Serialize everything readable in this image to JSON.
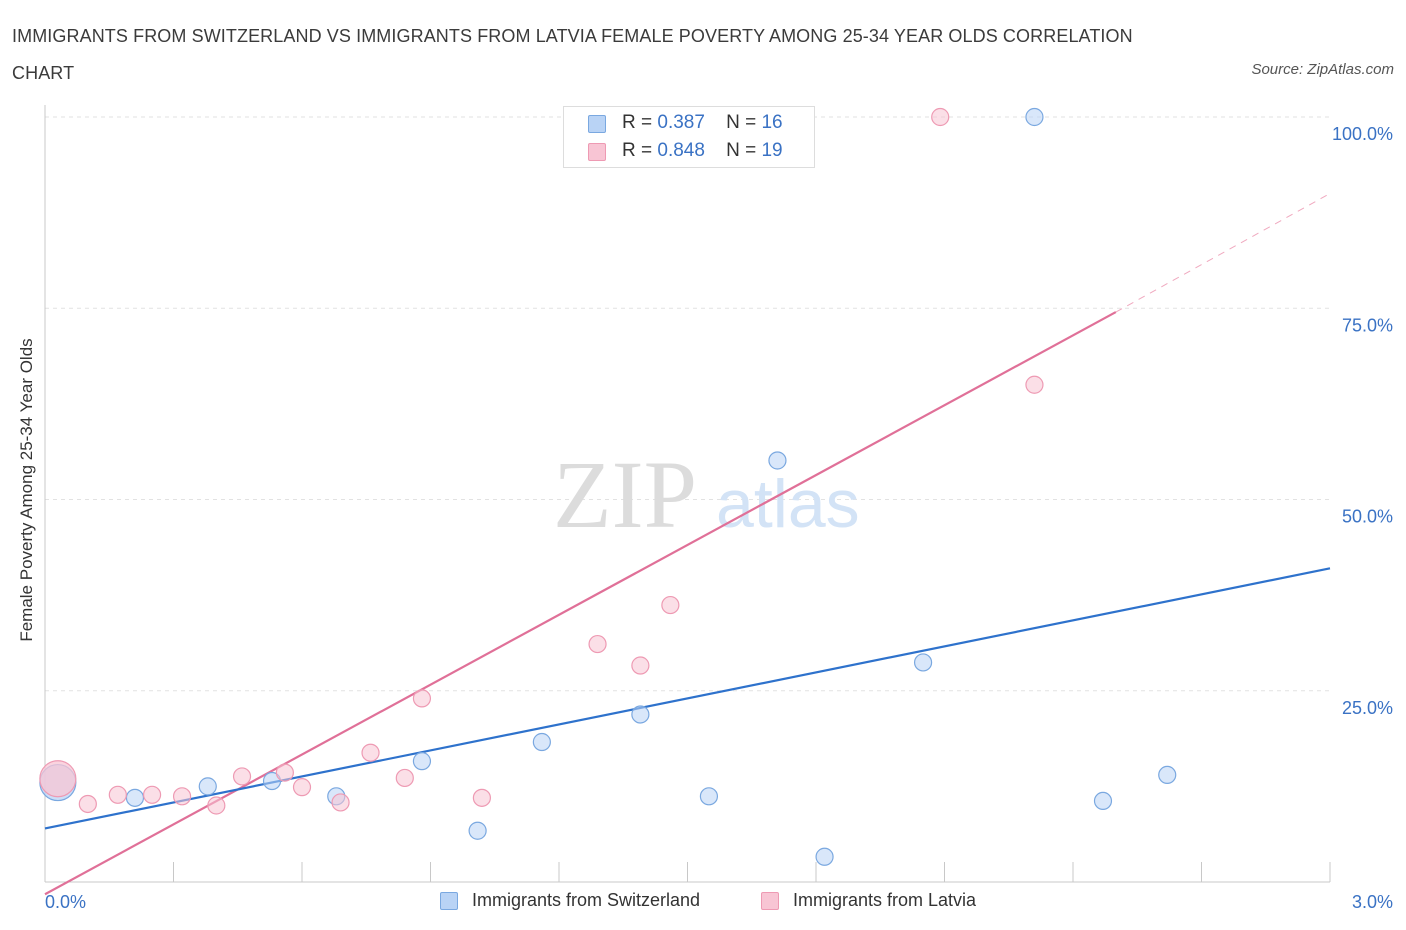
{
  "header": {
    "title": "IMMIGRANTS FROM SWITZERLAND VS IMMIGRANTS FROM LATVIA FEMALE POVERTY AMONG 25-34 YEAR OLDS CORRELATION CHART",
    "source": "Source: ZipAtlas.com"
  },
  "watermark": {
    "zip": "ZIP",
    "atlas": "atlas"
  },
  "legend": {
    "r_label": "R =",
    "n_label": "N =",
    "switzerland": {
      "r": "0.387",
      "n": "16"
    },
    "latvia": {
      "r": "0.848",
      "n": "19"
    }
  },
  "colors": {
    "switzerland_fill": "#b9d3f5",
    "switzerland_stroke": "#7aa8e0",
    "switzerland_line": "#2e72cc",
    "latvia_fill": "#f8c5d4",
    "latvia_stroke": "#ee9ab3",
    "latvia_line": "#e07098",
    "axis_label": "#3a72c4"
  },
  "chart_data": {
    "type": "scatter",
    "ylabel": "Female Poverty Among 25-34 Year Olds",
    "xlim": [
      0,
      3
    ],
    "ylim": [
      0,
      100
    ],
    "x_ticks": [
      "0.0%",
      "3.0%"
    ],
    "y_ticks": [
      {
        "value": 25,
        "label": "25.0%"
      },
      {
        "value": 50,
        "label": "50.0%"
      },
      {
        "value": 75,
        "label": "75.0%"
      },
      {
        "value": 100,
        "label": "100.0%"
      }
    ],
    "grid": true,
    "legend_position": "top-center",
    "series": [
      {
        "name": "Immigrants from Switzerland",
        "points": [
          {
            "x": 0.03,
            "y": 13.0,
            "big": true
          },
          {
            "x": 0.21,
            "y": 11.0
          },
          {
            "x": 0.38,
            "y": 12.5
          },
          {
            "x": 0.53,
            "y": 13.2
          },
          {
            "x": 0.68,
            "y": 11.2
          },
          {
            "x": 0.88,
            "y": 15.8
          },
          {
            "x": 1.01,
            "y": 6.7
          },
          {
            "x": 1.16,
            "y": 18.3
          },
          {
            "x": 1.39,
            "y": 21.9
          },
          {
            "x": 1.55,
            "y": 11.2
          },
          {
            "x": 1.71,
            "y": 55.1
          },
          {
            "x": 1.82,
            "y": 3.3
          },
          {
            "x": 2.05,
            "y": 28.7
          },
          {
            "x": 2.31,
            "y": 100.0
          },
          {
            "x": 2.47,
            "y": 10.6
          },
          {
            "x": 2.62,
            "y": 14.0
          }
        ],
        "trend": {
          "x0": 0.0,
          "y0": 7.0,
          "x1": 3.0,
          "y1": 41.0
        }
      },
      {
        "name": "Immigrants from Latvia",
        "points": [
          {
            "x": 0.03,
            "y": 13.5,
            "big": true
          },
          {
            "x": 0.1,
            "y": 10.2
          },
          {
            "x": 0.17,
            "y": 11.4
          },
          {
            "x": 0.25,
            "y": 11.4
          },
          {
            "x": 0.32,
            "y": 11.2
          },
          {
            "x": 0.4,
            "y": 10.0
          },
          {
            "x": 0.46,
            "y": 13.8
          },
          {
            "x": 0.56,
            "y": 14.3
          },
          {
            "x": 0.6,
            "y": 12.4
          },
          {
            "x": 0.69,
            "y": 10.4
          },
          {
            "x": 0.76,
            "y": 16.9
          },
          {
            "x": 0.84,
            "y": 13.6
          },
          {
            "x": 0.88,
            "y": 24.0
          },
          {
            "x": 1.02,
            "y": 11.0
          },
          {
            "x": 1.29,
            "y": 31.1
          },
          {
            "x": 1.39,
            "y": 28.3
          },
          {
            "x": 1.46,
            "y": 36.2
          },
          {
            "x": 2.09,
            "y": 100.0
          },
          {
            "x": 2.31,
            "y": 65.0
          }
        ],
        "trend": {
          "x0": 0.0,
          "y0": -1.6,
          "x1": 2.5,
          "y1": 74.5
        },
        "trend_extension": {
          "x0": 2.5,
          "y0": 74.5,
          "x1": 3.0,
          "y1": 90.0
        }
      }
    ]
  }
}
